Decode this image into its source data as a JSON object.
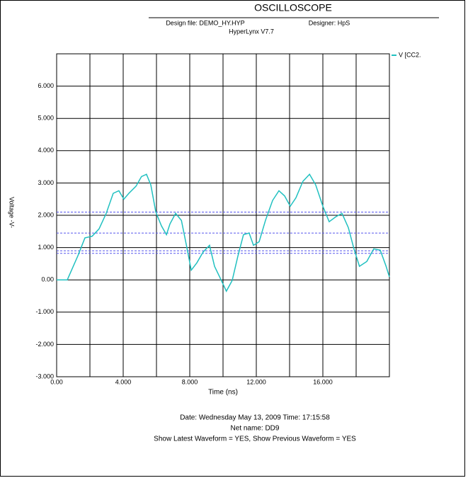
{
  "chart_data": {
    "type": "line",
    "title": "OSCILLOSCOPE",
    "design_file": "Design file: DEMO_HY.HYP",
    "designer": "Designer: HpS",
    "software": "HyperLynx V7.7",
    "x_label": "Time (ns)",
    "y_label": "Voltage -V-",
    "footer": [
      "Date: Wednesday May 13, 2009   Time: 17:15:58",
      "Net name: DD9",
      "Show Latest Waveform = YES,  Show Previous Waveform = YES"
    ],
    "xlim": [
      0,
      20
    ],
    "ylim": [
      -3,
      7
    ],
    "xticks": [
      {
        "value": 0,
        "label": "0.00"
      },
      {
        "value": 4,
        "label": "4.000"
      },
      {
        "value": 8,
        "label": "8.000"
      },
      {
        "value": 12,
        "label": "12.000"
      },
      {
        "value": 16,
        "label": "16.000"
      }
    ],
    "xminor": [
      2,
      6,
      10,
      14,
      18,
      20
    ],
    "yticks": [
      {
        "value": -3,
        "label": "-3.000"
      },
      {
        "value": -2,
        "label": "-2.000"
      },
      {
        "value": -1,
        "label": "-1.000"
      },
      {
        "value": 0,
        "label": "0.00"
      },
      {
        "value": 1,
        "label": "1.000"
      },
      {
        "value": 2,
        "label": "2.000"
      },
      {
        "value": 3,
        "label": "3.000"
      },
      {
        "value": 4,
        "label": "4.000"
      },
      {
        "value": 5,
        "label": "5.000"
      },
      {
        "value": 6,
        "label": "6.000"
      }
    ],
    "grid": true,
    "reference_lines": [
      {
        "value": 2.1,
        "color": "#5555ee"
      },
      {
        "value": 2.0,
        "color": "#000000"
      },
      {
        "value": 1.45,
        "color": "#5555ee"
      },
      {
        "value": 0.9,
        "color": "#5555ee"
      },
      {
        "value": 0.82,
        "color": "#5555ee"
      }
    ],
    "series": [
      {
        "name": "V [CC2.",
        "color": "#20c0c0",
        "x": [
          0,
          0.64,
          1.28,
          1.7,
          2.13,
          2.55,
          2.98,
          3.4,
          3.74,
          4.04,
          4.34,
          4.77,
          5.1,
          5.4,
          5.66,
          5.96,
          6.3,
          6.6,
          6.81,
          7.15,
          7.5,
          7.8,
          8.09,
          8.43,
          8.8,
          9.19,
          9.49,
          9.9,
          10.2,
          10.55,
          10.9,
          11.23,
          11.57,
          11.83,
          12.17,
          12.55,
          12.98,
          13.36,
          13.7,
          14.04,
          14.38,
          14.8,
          15.2,
          15.57,
          16,
          16.38,
          16.77,
          17.15,
          17.53,
          17.87,
          18.2,
          18.64,
          19.06,
          19.45,
          19.8,
          20
        ],
        "values": [
          0,
          0,
          0.75,
          1.3,
          1.35,
          1.58,
          2.06,
          2.68,
          2.76,
          2.5,
          2.68,
          2.9,
          3.2,
          3.27,
          2.94,
          2.1,
          1.67,
          1.4,
          1.73,
          2.06,
          1.84,
          1.07,
          0.3,
          0.53,
          0.86,
          1.07,
          0.42,
          -0.02,
          -0.35,
          -0.02,
          0.75,
          1.4,
          1.45,
          1.07,
          1.18,
          1.84,
          2.46,
          2.76,
          2.6,
          2.28,
          2.54,
          3.05,
          3.27,
          2.94,
          2.28,
          1.8,
          1.95,
          2.06,
          1.62,
          0.96,
          0.42,
          0.57,
          0.96,
          0.92,
          0.42,
          0.09
        ]
      }
    ]
  }
}
